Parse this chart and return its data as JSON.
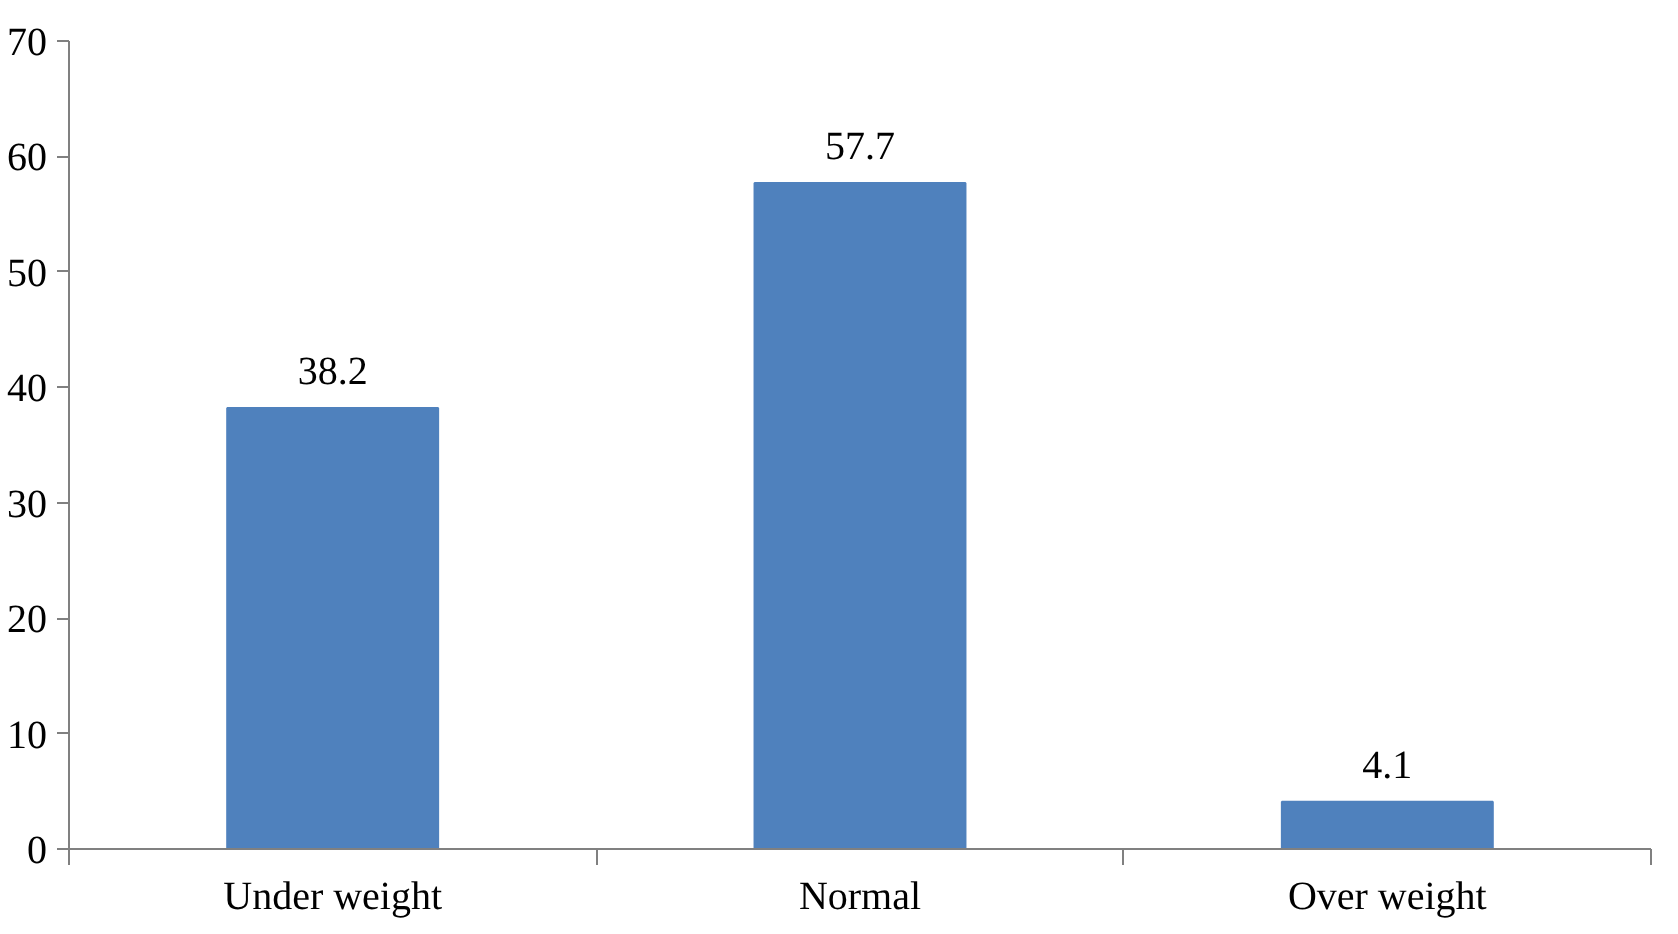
{
  "chart_data": {
    "type": "bar",
    "categories": [
      "Under weight",
      "Normal",
      "Over weight"
    ],
    "values": [
      38.2,
      57.7,
      4.1
    ],
    "color": "#4f81bd",
    "ylim": [
      0,
      70
    ],
    "yticks": [
      0,
      10,
      20,
      30,
      40,
      50,
      60,
      70
    ],
    "grid": false,
    "data_labels": true
  }
}
